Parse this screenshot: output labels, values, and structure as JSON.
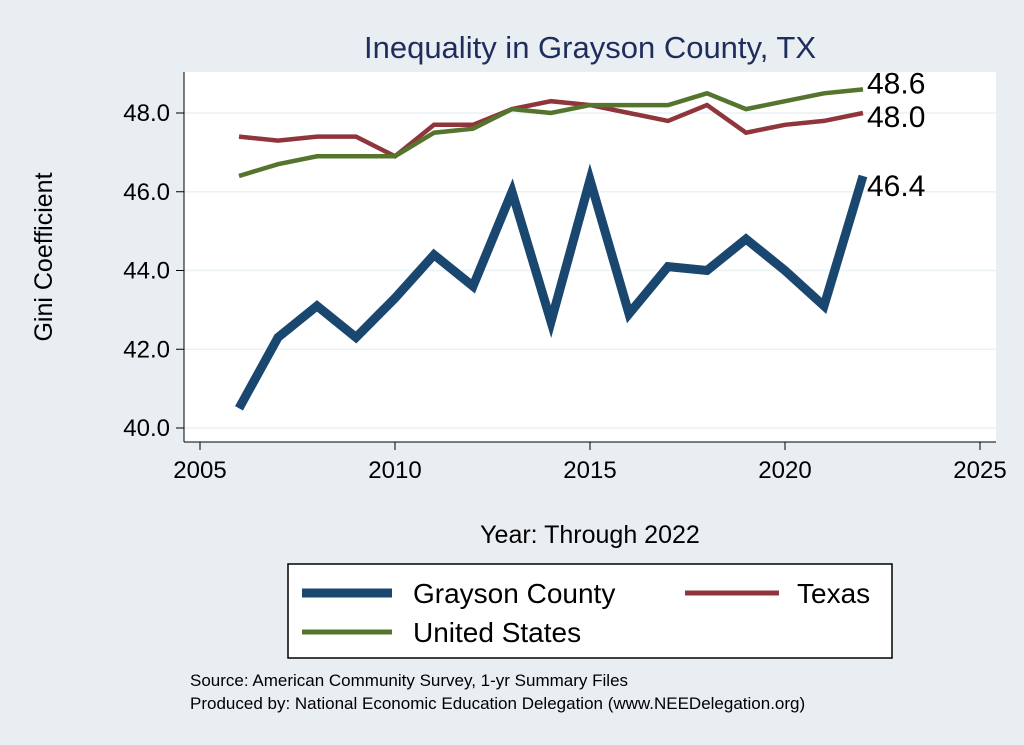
{
  "chart_data": {
    "type": "line",
    "title": "Inequality in Grayson County, TX",
    "xlabel": "Year: Through 2022",
    "ylabel": "Gini Coefficient",
    "xlim": [
      2005,
      2025
    ],
    "ylim": [
      40.0,
      48.6
    ],
    "xticks": [
      "2005",
      "2010",
      "2015",
      "2020",
      "2025"
    ],
    "yticks": [
      "40.0",
      "42.0",
      "44.0",
      "46.0",
      "48.0"
    ],
    "x": [
      2006,
      2007,
      2008,
      2009,
      2010,
      2011,
      2012,
      2013,
      2014,
      2015,
      2016,
      2017,
      2018,
      2019,
      2020,
      2021,
      2022
    ],
    "series": [
      {
        "name": "Grayson County",
        "color": "#1a476f",
        "end_label": "46.4",
        "values": [
          40.5,
          42.3,
          43.1,
          42.3,
          43.3,
          44.4,
          43.6,
          46.0,
          42.7,
          46.3,
          42.9,
          44.1,
          44.0,
          44.8,
          44.0,
          43.1,
          46.4
        ]
      },
      {
        "name": "Texas",
        "color": "#90353b",
        "end_label": "48.0",
        "values": [
          47.4,
          47.3,
          47.4,
          47.4,
          46.9,
          47.7,
          47.7,
          48.1,
          48.3,
          48.2,
          48.0,
          47.8,
          48.2,
          47.5,
          47.7,
          47.8,
          48.0
        ]
      },
      {
        "name": "United States",
        "color": "#55752f",
        "end_label": "48.6",
        "values": [
          46.4,
          46.7,
          46.9,
          46.9,
          46.9,
          47.5,
          47.6,
          48.1,
          48.0,
          48.2,
          48.2,
          48.2,
          48.5,
          48.1,
          48.3,
          48.5,
          48.6
        ]
      }
    ],
    "legend_position": "bottom",
    "grid": true
  },
  "footer": {
    "source": "Source: American Community Survey, 1-yr Summary Files",
    "produced_by": "Produced by: National Economic Education Delegation (www.NEEDelegation.org)"
  }
}
